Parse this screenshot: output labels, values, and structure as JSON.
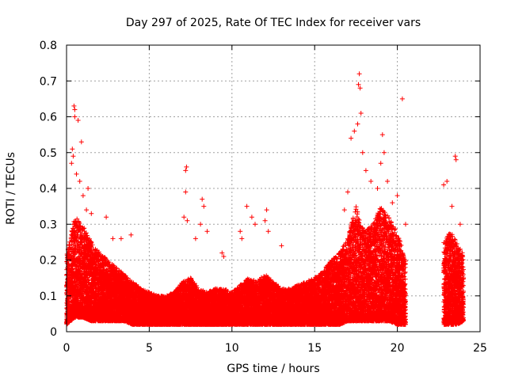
{
  "chart_data": {
    "type": "scatter",
    "title": "Day 297 of 2025, Rate Of TEC Index for receiver vars",
    "xlabel": "GPS time / hours",
    "ylabel": "ROTI / TECUs",
    "xlim": [
      0,
      25
    ],
    "ylim": [
      0,
      0.8
    ],
    "xticks": [
      0,
      5,
      10,
      15,
      20,
      25
    ],
    "yticks": [
      0,
      0.1,
      0.2,
      0.3,
      0.4,
      0.5,
      0.6,
      0.7,
      0.8
    ],
    "grid": true,
    "marker": "+",
    "color": "#ff0000",
    "series": [
      {
        "name": "ROTI",
        "envelope": {
          "x": [
            0.0,
            0.5,
            1.0,
            1.5,
            2.0,
            2.5,
            3.0,
            3.5,
            4.0,
            4.5,
            5.0,
            5.5,
            6.0,
            6.5,
            7.0,
            7.5,
            8.0,
            8.5,
            9.0,
            9.5,
            10.0,
            10.5,
            11.0,
            11.5,
            12.0,
            12.5,
            13.0,
            13.5,
            14.0,
            14.5,
            15.0,
            15.5,
            16.0,
            16.5,
            17.0,
            17.5,
            18.0,
            18.5,
            19.0,
            19.5,
            20.0,
            20.5,
            22.8,
            23.2,
            23.6,
            24.0
          ],
          "y_low": [
            0.02,
            0.04,
            0.04,
            0.03,
            0.03,
            0.03,
            0.03,
            0.03,
            0.02,
            0.02,
            0.02,
            0.02,
            0.02,
            0.02,
            0.02,
            0.02,
            0.02,
            0.02,
            0.02,
            0.02,
            0.02,
            0.02,
            0.02,
            0.02,
            0.02,
            0.02,
            0.02,
            0.02,
            0.02,
            0.02,
            0.02,
            0.02,
            0.02,
            0.02,
            0.03,
            0.03,
            0.03,
            0.03,
            0.03,
            0.03,
            0.02,
            0.02,
            0.02,
            0.02,
            0.02,
            0.03
          ],
          "y_high": [
            0.22,
            0.32,
            0.3,
            0.25,
            0.22,
            0.2,
            0.18,
            0.16,
            0.14,
            0.12,
            0.11,
            0.1,
            0.1,
            0.11,
            0.14,
            0.15,
            0.12,
            0.11,
            0.12,
            0.12,
            0.11,
            0.13,
            0.15,
            0.14,
            0.16,
            0.14,
            0.12,
            0.12,
            0.13,
            0.14,
            0.15,
            0.17,
            0.2,
            0.22,
            0.26,
            0.35,
            0.28,
            0.3,
            0.35,
            0.32,
            0.28,
            0.2,
            0.25,
            0.28,
            0.25,
            0.22
          ]
        },
        "outliers": [
          [
            0.45,
            0.63
          ],
          [
            0.5,
            0.62
          ],
          [
            0.5,
            0.6
          ],
          [
            0.7,
            0.59
          ],
          [
            0.35,
            0.51
          ],
          [
            0.4,
            0.49
          ],
          [
            0.3,
            0.47
          ],
          [
            0.9,
            0.53
          ],
          [
            0.6,
            0.44
          ],
          [
            0.8,
            0.42
          ],
          [
            1.0,
            0.38
          ],
          [
            1.3,
            0.4
          ],
          [
            1.2,
            0.34
          ],
          [
            1.5,
            0.33
          ],
          [
            2.4,
            0.32
          ],
          [
            2.8,
            0.26
          ],
          [
            3.3,
            0.26
          ],
          [
            3.9,
            0.27
          ],
          [
            7.25,
            0.46
          ],
          [
            7.2,
            0.45
          ],
          [
            7.2,
            0.39
          ],
          [
            7.1,
            0.32
          ],
          [
            7.3,
            0.31
          ],
          [
            7.8,
            0.26
          ],
          [
            8.2,
            0.37
          ],
          [
            8.3,
            0.35
          ],
          [
            8.1,
            0.3
          ],
          [
            8.5,
            0.28
          ],
          [
            9.4,
            0.22
          ],
          [
            9.5,
            0.21
          ],
          [
            10.5,
            0.28
          ],
          [
            10.6,
            0.26
          ],
          [
            10.9,
            0.35
          ],
          [
            11.2,
            0.32
          ],
          [
            11.4,
            0.3
          ],
          [
            12.0,
            0.31
          ],
          [
            12.1,
            0.34
          ],
          [
            12.2,
            0.28
          ],
          [
            13.0,
            0.24
          ],
          [
            16.8,
            0.34
          ],
          [
            17.0,
            0.39
          ],
          [
            17.2,
            0.54
          ],
          [
            17.4,
            0.56
          ],
          [
            17.6,
            0.58
          ],
          [
            17.65,
            0.69
          ],
          [
            17.7,
            0.72
          ],
          [
            17.75,
            0.68
          ],
          [
            17.8,
            0.61
          ],
          [
            17.9,
            0.5
          ],
          [
            18.1,
            0.45
          ],
          [
            18.4,
            0.42
          ],
          [
            18.8,
            0.4
          ],
          [
            19.0,
            0.47
          ],
          [
            19.1,
            0.55
          ],
          [
            19.2,
            0.5
          ],
          [
            19.4,
            0.42
          ],
          [
            19.7,
            0.36
          ],
          [
            20.0,
            0.38
          ],
          [
            20.3,
            0.65
          ],
          [
            20.5,
            0.3
          ],
          [
            22.8,
            0.41
          ],
          [
            23.0,
            0.42
          ],
          [
            23.3,
            0.35
          ],
          [
            23.5,
            0.49
          ],
          [
            23.55,
            0.48
          ],
          [
            23.8,
            0.3
          ]
        ]
      }
    ]
  }
}
